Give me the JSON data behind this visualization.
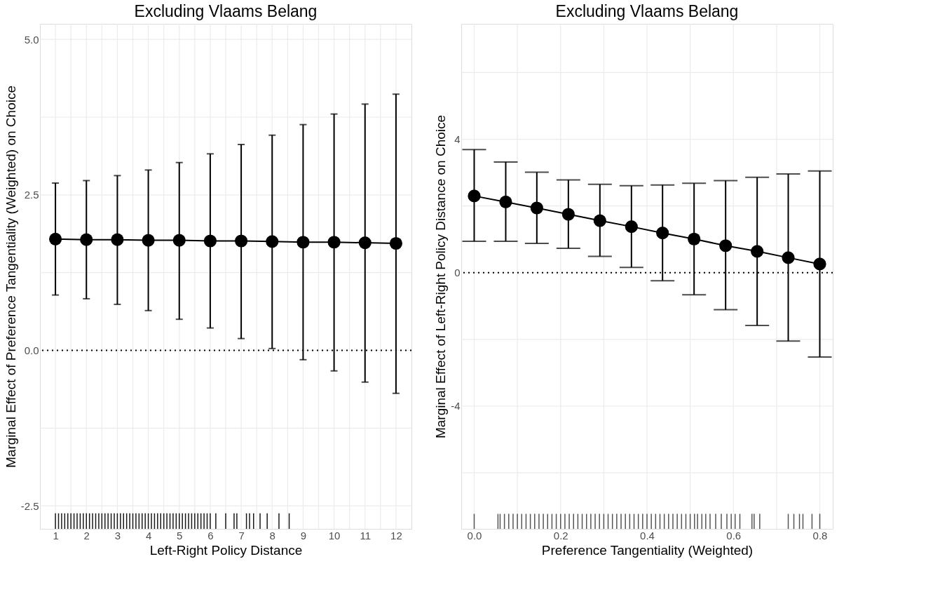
{
  "chart_data": [
    {
      "type": "line",
      "title": "Excluding Vlaams Belang",
      "xlabel": "Left-Right Policy Distance",
      "ylabel": "Marginal Effect of Preference Tangentiality (Weighted) on Choice",
      "xlim": [
        0.5,
        12.5
      ],
      "ylim": [
        -2.87,
        5.25
      ],
      "xticks": [
        1,
        {
          "value": 1.5,
          "label": null
        },
        2,
        {
          "value": 2.5,
          "label": null
        },
        3,
        {
          "value": 3.5,
          "label": null
        },
        4,
        {
          "value": 4.5,
          "label": null
        },
        5,
        {
          "value": 5.5,
          "label": null
        },
        6,
        {
          "value": 6.5,
          "label": null
        },
        7,
        {
          "value": 7.5,
          "label": null
        },
        8,
        {
          "value": 8.5,
          "label": null
        },
        9,
        {
          "value": 9.5,
          "label": null
        },
        10,
        {
          "value": 10.5,
          "label": null
        },
        11,
        {
          "value": 11.5,
          "label": null
        },
        12
      ],
      "yticks": [
        {
          "value": -2.5,
          "label": "-2.5"
        },
        {
          "value": -1.25,
          "label": null
        },
        {
          "value": 0,
          "label": "0.0"
        },
        {
          "value": 1.25,
          "label": null
        },
        2.5,
        {
          "value": 3.75,
          "label": null
        },
        {
          "value": 5,
          "label": "5.0"
        }
      ],
      "grid": true,
      "marker": "circle",
      "line_style": "solid",
      "ref_lines": [
        {
          "axis": "y",
          "value": 0,
          "line_style": "dotted",
          "color": "#000000"
        }
      ],
      "series": [
        {
          "color": "#000000",
          "x": [
            1,
            2,
            3,
            4,
            5,
            6,
            7,
            8,
            9,
            10,
            11,
            12
          ],
          "values": [
            1.79,
            1.78,
            1.78,
            1.77,
            1.77,
            1.76,
            1.76,
            1.75,
            1.74,
            1.74,
            1.73,
            1.72
          ],
          "errors": [
            [
              0.89,
              2.69
            ],
            [
              0.83,
              2.73
            ],
            [
              0.74,
              2.81
            ],
            [
              0.64,
              2.9
            ],
            [
              0.5,
              3.02
            ],
            [
              0.36,
              3.16
            ],
            [
              0.19,
              3.31
            ],
            [
              0.03,
              3.46
            ],
            [
              -0.15,
              3.63
            ],
            [
              -0.33,
              3.8
            ],
            [
              -0.51,
              3.96
            ],
            [
              -0.69,
              4.12
            ]
          ]
        },
        {
          "type": "bar",
          "color": "#000000",
          "x": [
            1.0,
            1.1,
            1.2,
            1.3,
            1.4,
            1.5,
            1.6,
            1.7,
            1.8,
            1.9,
            2.0,
            2.1,
            2.2,
            2.3,
            2.4,
            2.5,
            2.6,
            2.7,
            2.8,
            2.9,
            3.0,
            3.1,
            3.2,
            3.3,
            3.4,
            3.5,
            3.6,
            3.7,
            3.8,
            3.9,
            4.0,
            4.1,
            4.2,
            4.3,
            4.4,
            4.5,
            4.6,
            4.7,
            4.8,
            4.9,
            5.0,
            5.1,
            5.2,
            5.3,
            5.4,
            5.5,
            5.6,
            5.7,
            5.8,
            5.9,
            6.0,
            6.18,
            6.5,
            6.77,
            6.86,
            7.17,
            7.27,
            7.4,
            7.61,
            7.84,
            8.22,
            8.55
          ],
          "base": [
            -2.87,
            -2.87,
            -2.87,
            -2.87,
            -2.87,
            -2.87,
            -2.87,
            -2.87,
            -2.87,
            -2.87,
            -2.87,
            -2.87,
            -2.87,
            -2.87,
            -2.87,
            -2.87,
            -2.87,
            -2.87,
            -2.87,
            -2.87,
            -2.87,
            -2.87,
            -2.87,
            -2.87,
            -2.87,
            -2.87,
            -2.87,
            -2.87,
            -2.87,
            -2.87,
            -2.87,
            -2.87,
            -2.87,
            -2.87,
            -2.87,
            -2.87,
            -2.87,
            -2.87,
            -2.87,
            -2.87,
            -2.87,
            -2.87,
            -2.87,
            -2.87,
            -2.87,
            -2.87,
            -2.87,
            -2.87,
            -2.87,
            -2.87,
            -2.87,
            -2.87,
            -2.87,
            -2.87,
            -2.87,
            -2.87,
            -2.87,
            -2.87,
            -2.87,
            -2.87,
            -2.87,
            -2.87
          ],
          "values": [
            0.25,
            0.25,
            0.25,
            0.25,
            0.25,
            0.25,
            0.25,
            0.25,
            0.25,
            0.25,
            0.25,
            0.25,
            0.25,
            0.25,
            0.25,
            0.25,
            0.25,
            0.25,
            0.25,
            0.25,
            0.25,
            0.25,
            0.25,
            0.25,
            0.25,
            0.25,
            0.25,
            0.25,
            0.25,
            0.25,
            0.25,
            0.25,
            0.25,
            0.25,
            0.25,
            0.25,
            0.25,
            0.25,
            0.25,
            0.25,
            0.25,
            0.25,
            0.25,
            0.25,
            0.25,
            0.25,
            0.25,
            0.25,
            0.25,
            0.25,
            0.25,
            0.25,
            0.25,
            0.25,
            0.25,
            0.25,
            0.25,
            0.25,
            0.25,
            0.25,
            0.25,
            0.25
          ]
        }
      ]
    },
    {
      "type": "line",
      "title": "Excluding Vlaams Belang",
      "xlabel": "Preference Tangentiality (Weighted)",
      "ylabel": "Marginal Effect of Left-Right Policy Distance on Choice",
      "xlim": [
        -0.03,
        0.83
      ],
      "ylim": [
        -7.68,
        7.46
      ],
      "xticks": [
        {
          "value": 0,
          "label": "0.0"
        },
        {
          "value": 0.1,
          "label": null
        },
        0.2,
        {
          "value": 0.3,
          "label": null
        },
        0.4,
        {
          "value": 0.5,
          "label": null
        },
        0.6,
        {
          "value": 0.7,
          "label": null
        },
        0.8
      ],
      "yticks": [
        {
          "value": -6,
          "label": null
        },
        -4,
        {
          "value": -2,
          "label": null
        },
        0,
        {
          "value": 2,
          "label": null
        },
        4,
        {
          "value": 6,
          "label": null
        }
      ],
      "grid": true,
      "marker": "circle",
      "line_style": "solid",
      "ref_lines": [
        {
          "axis": "y",
          "value": 0,
          "line_style": "dotted",
          "color": "#000000"
        }
      ],
      "series": [
        {
          "color": "#000000",
          "x": [
            0,
            0.073,
            0.145,
            0.218,
            0.291,
            0.364,
            0.436,
            0.509,
            0.582,
            0.655,
            0.727,
            0.8
          ],
          "values": [
            2.3,
            2.12,
            1.94,
            1.75,
            1.56,
            1.38,
            1.19,
            1.01,
            0.81,
            0.64,
            0.45,
            0.26
          ],
          "errors": [
            [
              0.94,
              3.69
            ],
            [
              0.94,
              3.32
            ],
            [
              0.88,
              3.01
            ],
            [
              0.73,
              2.78
            ],
            [
              0.49,
              2.65
            ],
            [
              0.16,
              2.61
            ],
            [
              -0.24,
              2.63
            ],
            [
              -0.66,
              2.68
            ],
            [
              -1.11,
              2.76
            ],
            [
              -1.58,
              2.86
            ],
            [
              -2.05,
              2.96
            ],
            [
              -2.53,
              3.05
            ]
          ]
        },
        {
          "type": "bar",
          "color": "#444444",
          "x": [
            0.0,
            0.055,
            0.06,
            0.07,
            0.08,
            0.09,
            0.1,
            0.11,
            0.12,
            0.13,
            0.14,
            0.15,
            0.16,
            0.17,
            0.18,
            0.19,
            0.2,
            0.21,
            0.22,
            0.23,
            0.24,
            0.25,
            0.26,
            0.27,
            0.28,
            0.29,
            0.3,
            0.31,
            0.32,
            0.33,
            0.34,
            0.35,
            0.36,
            0.37,
            0.38,
            0.39,
            0.4,
            0.41,
            0.42,
            0.43,
            0.44,
            0.45,
            0.46,
            0.47,
            0.48,
            0.49,
            0.5,
            0.51,
            0.517,
            0.527,
            0.536,
            0.546,
            0.559,
            0.572,
            0.585,
            0.595,
            0.604,
            0.615,
            0.643,
            0.648,
            0.661,
            0.727,
            0.74,
            0.753,
            0.761,
            0.782,
            0.8
          ],
          "base": [
            -7.68,
            -7.68,
            -7.68,
            -7.68,
            -7.68,
            -7.68,
            -7.68,
            -7.68,
            -7.68,
            -7.68,
            -7.68,
            -7.68,
            -7.68,
            -7.68,
            -7.68,
            -7.68,
            -7.68,
            -7.68,
            -7.68,
            -7.68,
            -7.68,
            -7.68,
            -7.68,
            -7.68,
            -7.68,
            -7.68,
            -7.68,
            -7.68,
            -7.68,
            -7.68,
            -7.68,
            -7.68,
            -7.68,
            -7.68,
            -7.68,
            -7.68,
            -7.68,
            -7.68,
            -7.68,
            -7.68,
            -7.68,
            -7.68,
            -7.68,
            -7.68,
            -7.68,
            -7.68,
            -7.68,
            -7.68,
            -7.68,
            -7.68,
            -7.68,
            -7.68,
            -7.68,
            -7.68,
            -7.68,
            -7.68,
            -7.68,
            -7.68,
            -7.68,
            -7.68,
            -7.68,
            -7.68,
            -7.68,
            -7.68,
            -7.68,
            -7.68,
            -7.68
          ],
          "values": [
            0.45,
            0.45,
            0.45,
            0.45,
            0.45,
            0.45,
            0.45,
            0.45,
            0.45,
            0.45,
            0.45,
            0.45,
            0.45,
            0.45,
            0.45,
            0.45,
            0.45,
            0.45,
            0.45,
            0.45,
            0.45,
            0.45,
            0.45,
            0.45,
            0.45,
            0.45,
            0.45,
            0.45,
            0.45,
            0.45,
            0.45,
            0.45,
            0.45,
            0.45,
            0.45,
            0.45,
            0.45,
            0.45,
            0.45,
            0.45,
            0.45,
            0.45,
            0.45,
            0.45,
            0.45,
            0.45,
            0.45,
            0.45,
            0.45,
            0.45,
            0.45,
            0.45,
            0.45,
            0.45,
            0.45,
            0.45,
            0.45,
            0.45,
            0.45,
            0.45,
            0.45,
            0.45,
            0.45,
            0.45,
            0.45,
            0.45,
            0.45
          ]
        }
      ]
    }
  ]
}
